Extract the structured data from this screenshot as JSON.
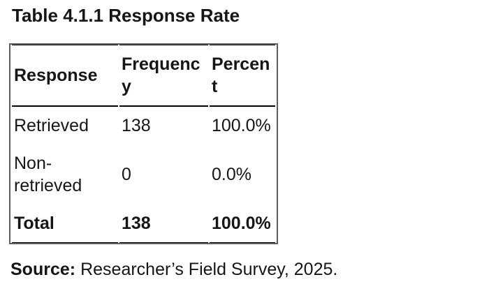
{
  "title": "Table 4.1.1 Response Rate",
  "table": {
    "columns": [
      "Response",
      "Frequency",
      "Percent"
    ],
    "rows": [
      {
        "response": "Retrieved",
        "frequency": "138",
        "percent": "100.0%"
      },
      {
        "response": "Non-retrieved",
        "frequency": "0",
        "percent": "0.0%"
      },
      {
        "response": "Total",
        "frequency": "138",
        "percent": "100.0%"
      }
    ]
  },
  "source": {
    "label": "Source:",
    "text": "Researcher’s Field Survey, 2025."
  },
  "colors": {
    "text": "#161616",
    "table_outer_border": "#5f5f5f",
    "table_inner_lines": "#000000",
    "background": "#ffffff"
  }
}
